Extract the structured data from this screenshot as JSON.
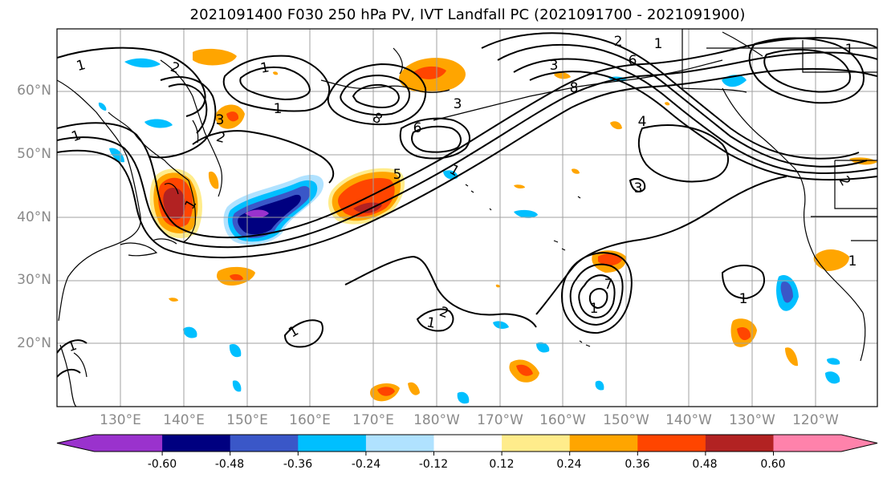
{
  "title": "2021091400 F030 250 hPa PV, IVT Landfall PC (2021091700 - 2021091900)",
  "lat_labels": [
    "60°N",
    "50°N",
    "40°N",
    "30°N",
    "20°N"
  ],
  "lon_labels": [
    "130°E",
    "140°E",
    "150°E",
    "160°E",
    "170°E",
    "180°W",
    "170°W",
    "160°W",
    "150°W",
    "140°W",
    "130°W",
    "120°W"
  ],
  "colorbar": {
    "colors": [
      "#9a32cd",
      "#000080",
      "#3a57c8",
      "#00bfff",
      "#b0e2ff",
      "#ffffff",
      "#ffec8b",
      "#ffa500",
      "#ff4500",
      "#b22222",
      "#ff82ab"
    ],
    "tick_labels": [
      "-0.60",
      "-0.48",
      "-0.36",
      "-0.24",
      "-0.12",
      "0.12",
      "0.24",
      "0.36",
      "0.48",
      "0.60"
    ]
  },
  "contour_labels": [
    "1",
    "2",
    "1",
    "1",
    "2",
    "1",
    "3",
    "8",
    "3",
    "2",
    "6",
    "3",
    "1",
    "8",
    "6",
    "5",
    "1",
    "2",
    "1",
    "7",
    "1",
    "1",
    "1",
    "1",
    "2",
    "3",
    "1",
    "4",
    "1",
    "1"
  ]
}
